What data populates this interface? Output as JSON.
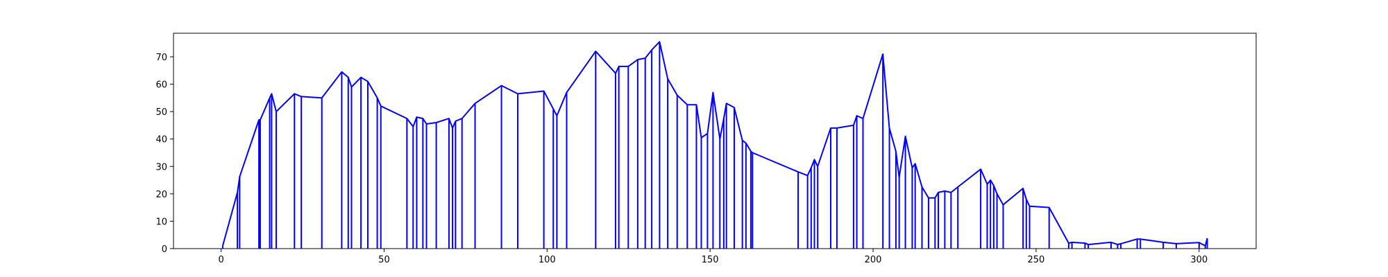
{
  "chart_data": {
    "type": "line",
    "title": "",
    "xlabel": "",
    "ylabel": "",
    "xlim": [
      -14.6,
      317.5
    ],
    "ylim": [
      0,
      78.6
    ],
    "xticks": [
      0,
      50,
      100,
      150,
      200,
      250,
      300
    ],
    "yticks": [
      0,
      10,
      20,
      30,
      40,
      50,
      60,
      70
    ],
    "grid": false,
    "legend": "none",
    "series": [
      {
        "color": "#0000ff",
        "style": "stem-outline",
        "x": [
          0.5,
          5.0,
          5.7,
          11.6,
          12.0,
          14.9,
          15.5,
          16.9,
          22.5,
          24.6,
          30.9,
          37.0,
          39.0,
          40.0,
          42.9,
          45.0,
          47.9,
          49.0,
          57.0,
          58.9,
          60.0,
          61.9,
          63.0,
          66.0,
          69.9,
          71.0,
          71.9,
          73.9,
          77.9,
          86.0,
          91.0,
          99.0,
          101.9,
          103.0,
          106.0,
          114.9,
          121.0,
          122.0,
          124.9,
          127.8,
          130.1,
          132.1,
          134.5,
          137.0,
          139.9,
          143.0,
          145.8,
          147.3,
          149.2,
          150.9,
          153.0,
          154.2,
          155.0,
          157.4,
          159.9,
          161.0,
          162.5,
          163.0,
          177.0,
          179.9,
          181.0,
          182.0,
          183.0,
          187.0,
          188.9,
          194.0,
          195.0,
          196.9,
          203.0,
          205.0,
          207.0,
          208.0,
          209.9,
          212.0,
          212.9,
          215.0,
          217.0,
          219.0,
          220.0,
          222.0,
          223.9,
          226.0,
          233.0,
          235.0,
          236.0,
          237.0,
          238.0,
          239.9,
          246.0,
          247.0,
          248.0,
          254.0,
          260.0,
          261.0,
          265.0,
          266.0,
          273.0,
          275.0,
          276.0,
          281.0,
          282.0,
          289.0,
          293.0,
          300.0,
          301.9,
          302.5
        ],
        "y": [
          1.0,
          20.5,
          26.3,
          47.0,
          47.0,
          55.0,
          56.5,
          50.0,
          56.5,
          55.5,
          55.0,
          64.5,
          62.5,
          59.0,
          62.5,
          61.0,
          55.0,
          52.0,
          47.5,
          44.5,
          48.0,
          47.5,
          45.5,
          46.0,
          47.5,
          44.0,
          46.5,
          47.5,
          53.0,
          59.5,
          56.5,
          57.5,
          51.0,
          48.5,
          57.0,
          72.0,
          64.0,
          66.5,
          66.5,
          69.0,
          69.5,
          72.5,
          75.5,
          62.0,
          56.0,
          52.5,
          52.5,
          40.5,
          42.0,
          57.0,
          40.0,
          47.5,
          53.0,
          51.5,
          39.5,
          38.5,
          35.5,
          35.0,
          28.0,
          26.7,
          29.5,
          32.5,
          30.0,
          44.0,
          44.0,
          45.0,
          48.5,
          47.5,
          71.0,
          44.0,
          35.5,
          26.0,
          41.0,
          29.5,
          31.0,
          22.5,
          18.5,
          18.5,
          20.5,
          21.0,
          20.5,
          22.5,
          29.0,
          23.5,
          25.0,
          23.0,
          20.0,
          16.0,
          22.0,
          18.0,
          15.5,
          15.0,
          2.0,
          2.3,
          2.0,
          1.5,
          2.3,
          1.5,
          1.8,
          3.5,
          3.5,
          2.3,
          1.8,
          2.2,
          1.0,
          3.8
        ]
      }
    ]
  }
}
